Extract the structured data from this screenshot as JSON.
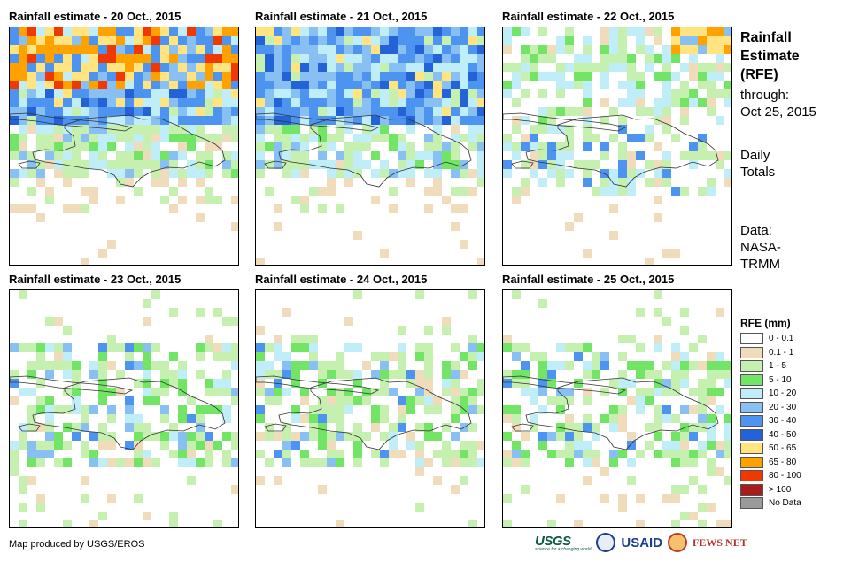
{
  "panels": [
    {
      "title": "Rainfall estimate - 20 Oct., 2015",
      "intensity": "high"
    },
    {
      "title": "Rainfall estimate - 21 Oct., 2015",
      "intensity": "high"
    },
    {
      "title": "Rainfall estimate - 22 Oct., 2015",
      "intensity": "medium"
    },
    {
      "title": "Rainfall estimate - 23 Oct., 2015",
      "intensity": "low"
    },
    {
      "title": "Rainfall estimate - 24 Oct., 2015",
      "intensity": "low"
    },
    {
      "title": "Rainfall estimate - 25 Oct., 2015",
      "intensity": "low"
    }
  ],
  "sidebar": {
    "title_line1": "Rainfall",
    "title_line2": "Estimate",
    "title_line3": "(RFE)",
    "through_label": "through:",
    "through_date": "Oct 25, 2015",
    "totals_line1": "Daily",
    "totals_line2": "Totals",
    "data_label": "Data:",
    "data_source_line1": "NASA-",
    "data_source_line2": "TRMM"
  },
  "legend": {
    "title": "RFE (mm)",
    "items": [
      {
        "label": "0 - 0.1",
        "color": "#ffffff"
      },
      {
        "label": "0.1 - 1",
        "color": "#f0dcba"
      },
      {
        "label": "1 - 5",
        "color": "#c6f0b0"
      },
      {
        "label": "5 - 10",
        "color": "#72e466"
      },
      {
        "label": "10 - 20",
        "color": "#bfeef8"
      },
      {
        "label": "20 - 30",
        "color": "#88c0f4"
      },
      {
        "label": "30 - 40",
        "color": "#4c94f0"
      },
      {
        "label": "40 - 50",
        "color": "#2462d8"
      },
      {
        "label": "50 - 65",
        "color": "#ffe480"
      },
      {
        "label": "65 - 80",
        "color": "#ffa200"
      },
      {
        "label": "80 - 100",
        "color": "#f03800"
      },
      {
        "label": "> 100",
        "color": "#a81c1c"
      },
      {
        "label": "No Data",
        "color": "#9a9a9a"
      }
    ]
  },
  "footer": {
    "credit": "Map produced by USGS/EROS",
    "logo_usgs": "USGS",
    "logo_usgs_tagline": "science for a changing world",
    "logo_usaid": "USAID",
    "logo_fews": "FEWS NET"
  }
}
